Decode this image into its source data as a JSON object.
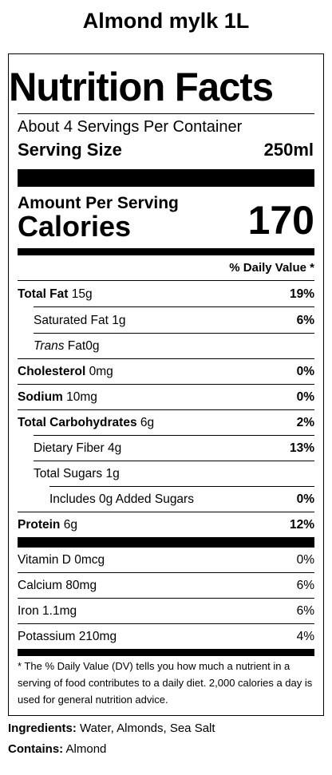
{
  "product": {
    "title": "Almond mylk 1L"
  },
  "label": {
    "title": "Nutrition Facts",
    "servings_per_container": "About 4 Servings Per Container",
    "serving_size_label": "Serving Size",
    "serving_size_value": "250ml",
    "amount_per_serving": "Amount Per Serving",
    "calories_label": "Calories",
    "calories_value": "170",
    "daily_value_header": "% Daily Value *",
    "nutrients": [
      {
        "name": "Total Fat",
        "amount": "15g",
        "dv": "19%"
      },
      {
        "name": "Saturated Fat",
        "amount": "1g",
        "dv": "6%"
      },
      {
        "name_italic": "Trans",
        "name": "Fat",
        "amount": "0g",
        "dv": ""
      },
      {
        "name": "Cholesterol",
        "amount": "0mg",
        "dv": "0%"
      },
      {
        "name": "Sodium",
        "amount": "10mg",
        "dv": "0%"
      },
      {
        "name": "Total Carbohydrates",
        "amount": "6g",
        "dv": "2%"
      },
      {
        "name": "Dietary Fiber",
        "amount": "4g",
        "dv": "13%"
      },
      {
        "name": "Total Sugars",
        "amount": "1g",
        "dv": ""
      },
      {
        "name": "Includes 0g Added Sugars",
        "amount": "",
        "dv": "0%"
      },
      {
        "name": "Protein",
        "amount": "6g",
        "dv": "12%"
      }
    ],
    "vitamins": [
      {
        "name": "Vitamin D",
        "amount": "0mcg",
        "dv": "0%"
      },
      {
        "name": "Calcium",
        "amount": "80mg",
        "dv": "6%"
      },
      {
        "name": "Iron",
        "amount": "1.1mg",
        "dv": "6%"
      },
      {
        "name": "Potassium",
        "amount": "210mg",
        "dv": "4%"
      }
    ],
    "footnote": "* The % Daily Value (DV) tells you how much a nutrient in a serving of food contributes to a daily diet. 2,000 calories a day is used for general nutrition advice."
  },
  "ingredients": {
    "label": "Ingredients:",
    "text": "Water, Almonds, Sea Salt"
  },
  "contains": {
    "label": "Contains:",
    "text": "Almond"
  }
}
